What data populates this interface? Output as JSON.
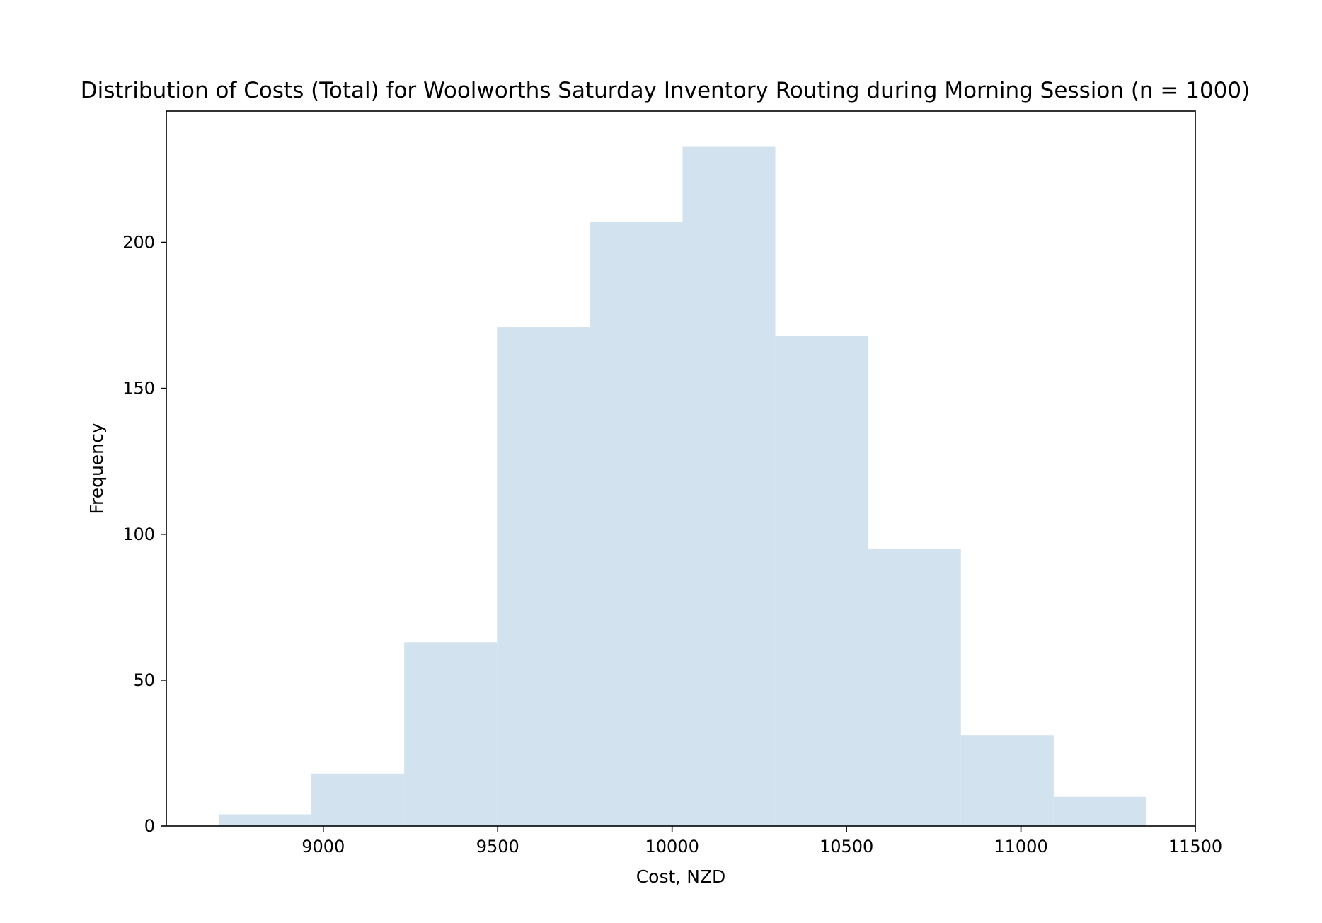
{
  "chart_data": {
    "type": "bar",
    "subtype": "histogram",
    "title": "Distribution of Costs (Total) for Woolworths Saturday Inventory Routing during Morning Session (n = 1000)",
    "xlabel": "Cost, NZD",
    "ylabel": "Frequency",
    "bin_edges": [
      8700,
      8966,
      9232,
      9498,
      9764,
      10030,
      10296,
      10562,
      10828,
      11094,
      11360
    ],
    "values": [
      4,
      18,
      63,
      171,
      207,
      233,
      168,
      95,
      31,
      10
    ],
    "xlim": [
      8550,
      11500
    ],
    "ylim": [
      0,
      245
    ],
    "xticks": [
      9000,
      9500,
      10000,
      10500,
      11000,
      11500
    ],
    "yticks": [
      0,
      50,
      100,
      150,
      200
    ],
    "bar_color": "#d2e3ef",
    "grid": false,
    "legend": "none"
  }
}
